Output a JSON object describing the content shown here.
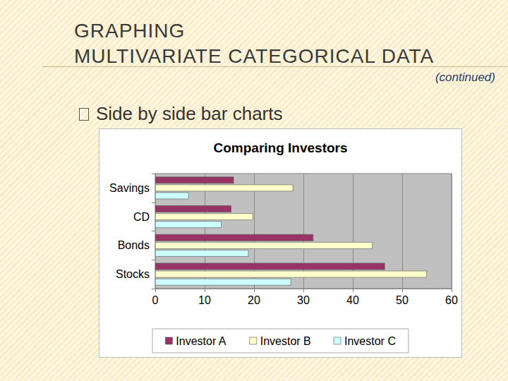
{
  "slide": {
    "title": [
      "GRAPHING",
      "MULTIVARIATE CATEGORICAL DATA"
    ],
    "note": "(continued)",
    "bullet": "Side by side bar charts"
  },
  "chart_data": {
    "type": "bar",
    "title": "Comparing Investors",
    "orientation": "horizontal",
    "categories": [
      "Stocks",
      "Bonds",
      "CD",
      "Savings"
    ],
    "series": [
      {
        "name": "Investor A",
        "color": "#993366",
        "values": [
          46.5,
          32,
          15.4,
          15.9
        ]
      },
      {
        "name": "Investor B",
        "color": "#ffffcc",
        "values": [
          55,
          44,
          19.8,
          27.9
        ]
      },
      {
        "name": "Investor C",
        "color": "#ccffff",
        "values": [
          27.5,
          18.9,
          13.4,
          6.8
        ]
      }
    ],
    "xlim": [
      0,
      60
    ],
    "xticks": [
      0,
      10,
      20,
      30,
      40,
      50,
      60
    ],
    "grid": true,
    "legend": "bottom"
  }
}
